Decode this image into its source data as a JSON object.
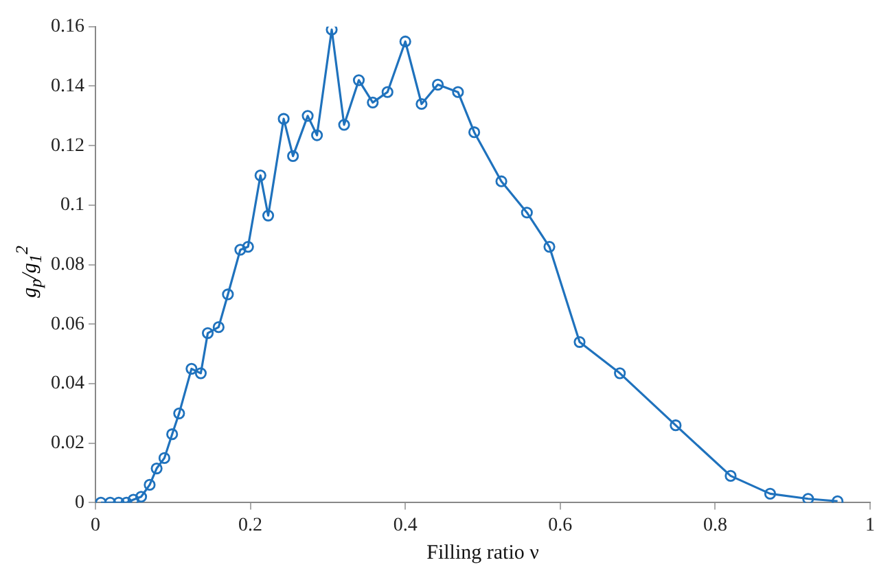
{
  "chart_data": {
    "type": "line",
    "xlabel": "Filling ratio ν",
    "ylabel": "g$_{p}$/g$_{1}$$^{2}$",
    "xlim": [
      0,
      1
    ],
    "xticks": [
      0,
      0.2,
      0.4,
      0.6,
      0.8,
      1
    ],
    "ylim": [
      0,
      0.16
    ],
    "yticks": [
      0,
      0.02,
      0.04,
      0.06,
      0.08,
      0.1,
      0.12,
      0.14,
      0.16
    ],
    "grid": false,
    "legend": false,
    "marker": "circle",
    "line_style": "solid",
    "series": [
      {
        "color": "#1f72bd",
        "x": [
          0.007,
          0.019,
          0.03,
          0.04,
          0.049,
          0.059,
          0.07,
          0.079,
          0.089,
          0.099,
          0.108,
          0.124,
          0.136,
          0.145,
          0.159,
          0.171,
          0.187,
          0.197,
          0.213,
          0.223,
          0.243,
          0.255,
          0.274,
          0.286,
          0.305,
          0.321,
          0.34,
          0.358,
          0.377,
          0.4,
          0.421,
          0.442,
          0.468,
          0.489,
          0.524,
          0.557,
          0.586,
          0.625,
          0.677,
          0.749,
          0.82,
          0.871,
          0.92,
          0.958
        ],
        "values": [
          0,
          0,
          0,
          0,
          0.001,
          0.002,
          0.006,
          0.0115,
          0.015,
          0.023,
          0.03,
          0.045,
          0.0435,
          0.057,
          0.059,
          0.07,
          0.085,
          0.086,
          0.11,
          0.0965,
          0.129,
          0.1165,
          0.13,
          0.1235,
          0.159,
          0.127,
          0.142,
          0.1345,
          0.138,
          0.155,
          0.134,
          0.1405,
          0.138,
          0.1245,
          0.108,
          0.0975,
          0.086,
          0.054,
          0.0435,
          0.026,
          0.009,
          0.003,
          0.0013,
          0.0005
        ]
      }
    ]
  }
}
